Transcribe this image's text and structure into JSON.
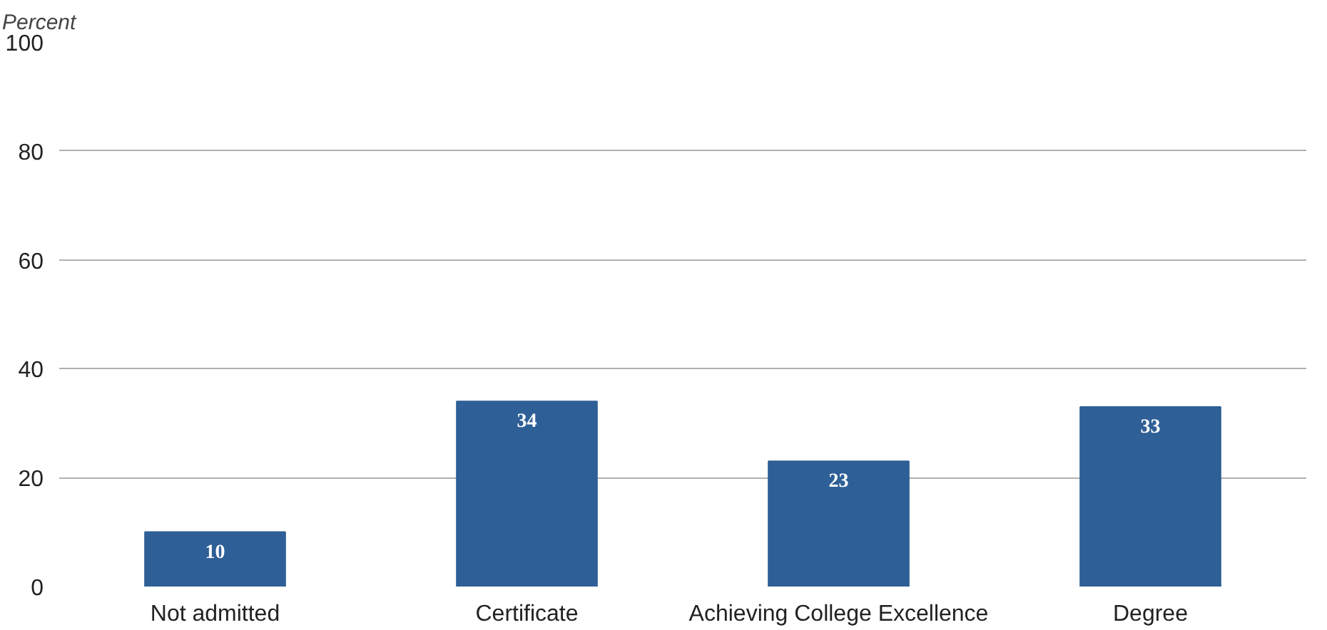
{
  "chart_data": {
    "type": "bar",
    "ylabel": "Percent",
    "categories": [
      "Not admitted",
      "Certificate",
      "Achieving College Excellence",
      "Degree"
    ],
    "values": [
      10,
      34,
      23,
      33
    ],
    "color": "#2e5f96",
    "ylim": [
      0,
      100
    ],
    "yticks": [
      0,
      20,
      40,
      60,
      80,
      100
    ],
    "grid": "y",
    "data_labels": true
  }
}
